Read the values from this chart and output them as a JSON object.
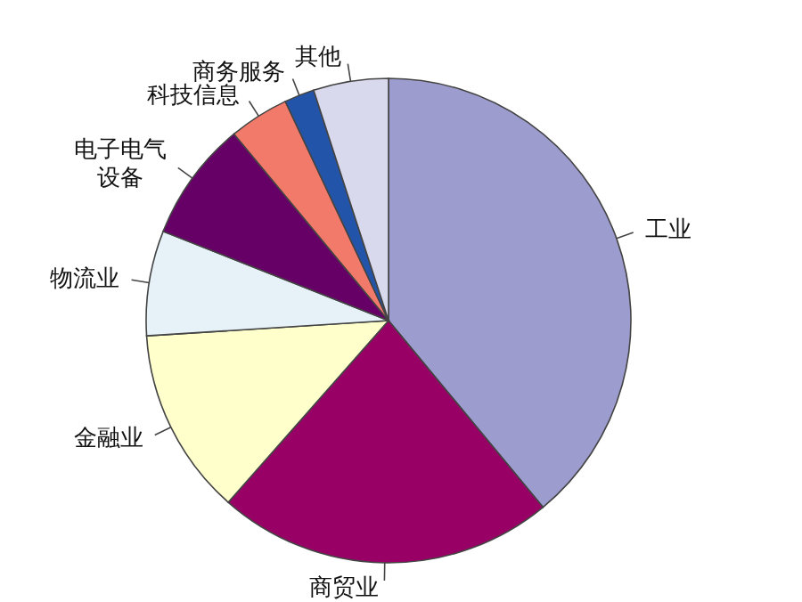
{
  "chart_data": {
    "type": "pie",
    "categories": [
      "工业",
      "商贸业",
      "金融业",
      "物流业",
      "电子电气设备",
      "科技信息",
      "商务服务",
      "其他"
    ],
    "values": [
      39,
      22.5,
      12.5,
      7,
      8,
      4,
      2,
      5
    ],
    "colors": [
      "#9c9ccf",
      "#990066",
      "#ffffcc",
      "#e6f2f8",
      "#660066",
      "#f27a6a",
      "#2255aa",
      "#d9d9ee"
    ]
  }
}
